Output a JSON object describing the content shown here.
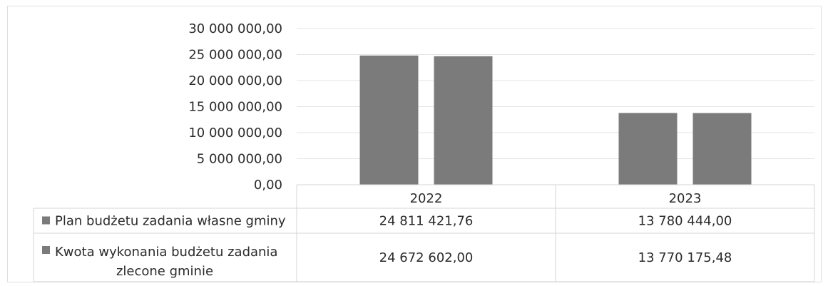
{
  "chart_data": {
    "type": "bar",
    "title": "",
    "xlabel": "",
    "ylabel": "",
    "categories": [
      "2022",
      "2023"
    ],
    "ylim": [
      0,
      30000000
    ],
    "yticks": [
      0,
      5000000,
      10000000,
      15000000,
      20000000,
      25000000,
      30000000
    ],
    "ytick_labels": [
      "0,00",
      "5 000 000,00",
      "10 000 000,00",
      "15 000 000,00",
      "20 000 000,00",
      "25 000 000,00",
      "30 000 000,00"
    ],
    "grid": true,
    "legend": "data-table",
    "series": [
      {
        "name": "Plan budżetu zadania własne gminy",
        "values": [
          24811421.76,
          13780444.0
        ],
        "value_labels": [
          "24 811 421,76",
          "13 780 444,00"
        ],
        "color": "#7b7b7b"
      },
      {
        "name_lines": [
          "Kwota wykonania budżetu zadania",
          "zlecone gminie"
        ],
        "name": "Kwota wykonania budżetu zadania zlecone gminie",
        "values": [
          24672602.0,
          13770175.48
        ],
        "value_labels": [
          "24 672 602,00",
          "13 770 175,48"
        ],
        "color": "#7b7b7b"
      }
    ]
  }
}
